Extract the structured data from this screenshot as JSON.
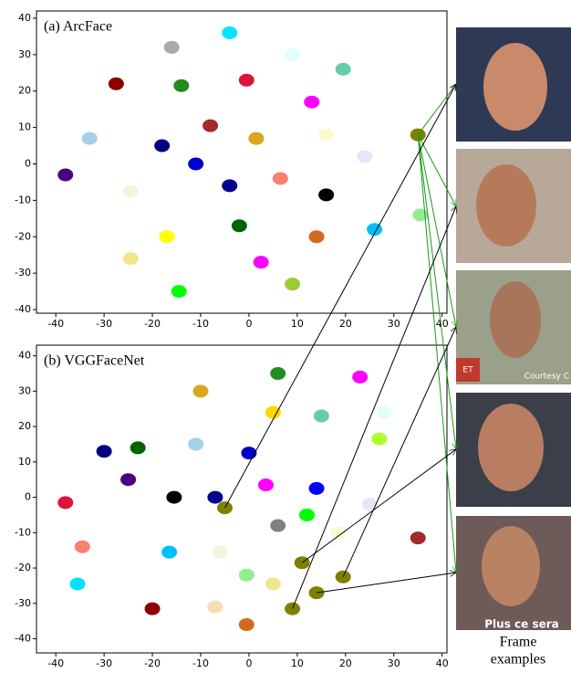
{
  "chart_data": [
    {
      "type": "scatter",
      "title": "(a) ArcFace",
      "x": [
        -16,
        -4,
        9,
        19.5,
        -27.5,
        -14,
        -0.5,
        13,
        -33,
        -18,
        -8,
        1.5,
        16,
        35,
        24,
        -38,
        -11,
        -4,
        6.5,
        16,
        -24.5,
        -2,
        26,
        35.5,
        -17,
        14,
        -24.5,
        2.5,
        -14.5,
        9
      ],
      "y": [
        32,
        36,
        30,
        26,
        22,
        21.5,
        23,
        17,
        7,
        5,
        10.5,
        7,
        8,
        8,
        2,
        -3,
        0,
        -6,
        -4,
        -8.5,
        -7.5,
        -17,
        -18,
        -14,
        -20,
        -20,
        -26,
        -27,
        -35,
        -33
      ],
      "colors": [
        "#a9a9a9",
        "#00e5ff",
        "#e0ffff",
        "#66cdaa",
        "#8b0000",
        "#228b22",
        "#dc143c",
        "#ff00ff",
        "#a6cfe8",
        "#000080",
        "#a52a2a",
        "#daa520",
        "#fafad2",
        "#808000",
        "#e6e6fa",
        "#4b0082",
        "#0000cd",
        "#00008b",
        "#fa8072",
        "#000000",
        "#f5f5dc",
        "#006400",
        "#00bfff",
        "#90ee90",
        "#ffff00",
        "#d2691e",
        "#f0e68c",
        "#ff00ff",
        "#00ff00",
        "#9acd32"
      ],
      "xlim": [
        -44,
        41
      ],
      "ylim": [
        -41,
        42
      ],
      "xticks": [
        -40,
        -30,
        -20,
        -10,
        0,
        10,
        20,
        30,
        40
      ],
      "yticks": [
        -40,
        -30,
        -20,
        -10,
        0,
        10,
        20,
        30,
        40
      ]
    },
    {
      "type": "scatter",
      "title": "(b) VGGFaceNet",
      "x": [
        -10,
        6,
        23,
        5,
        15,
        28,
        -11,
        -30,
        -23,
        27,
        -25,
        -15.5,
        -7,
        0,
        3.5,
        14,
        25,
        -38,
        -5,
        11,
        14,
        19.5,
        9,
        6,
        12,
        18.5,
        -34.5,
        -16.5,
        35,
        -6,
        -0.5,
        -35.5,
        -20,
        -7,
        -0.5,
        5
      ],
      "y": [
        30,
        35,
        34,
        24,
        23,
        24,
        15,
        13,
        14,
        16.5,
        5,
        0,
        0,
        12.5,
        3.5,
        2.5,
        -2,
        -1.5,
        -3,
        -18.5,
        -27,
        -22.5,
        -31.5,
        -8,
        -5,
        -10,
        -14,
        -15.5,
        -11.5,
        -15.5,
        -22,
        -24.5,
        -31.5,
        -31,
        -36,
        -24.5
      ],
      "colors": [
        "#daa520",
        "#228b22",
        "#ff00ff",
        "#ffd700",
        "#66cdaa",
        "#e0ffff",
        "#a6cfe8",
        "#000080",
        "#006400",
        "#adff2f",
        "#4b0082",
        "#000000",
        "#00008b",
        "#0000cd",
        "#ff00ff",
        "#0000ff",
        "#e6e6fa",
        "#dc143c",
        "#808000",
        "#808000",
        "#808000",
        "#808000",
        "#808000",
        "#808080",
        "#00ff00",
        "#fafad2",
        "#fa8072",
        "#00bfff",
        "#a52a2a",
        "#f5f5dc",
        "#90ee90",
        "#00e5ff",
        "#8b0000",
        "#f5deb3",
        "#d2691e",
        "#f0e68c"
      ],
      "xlim": [
        -44,
        41
      ],
      "ylim": [
        -44,
        43
      ],
      "xticks": [
        -40,
        -30,
        -20,
        -10,
        0,
        10,
        20,
        30,
        40
      ],
      "yticks": [
        -40,
        -30,
        -20,
        -10,
        0,
        10,
        20,
        30,
        40
      ]
    }
  ],
  "photo_texts": [
    "ET",
    "Courtesy C",
    "Plus ce sera"
  ],
  "caption": [
    "Frame",
    "examples"
  ]
}
